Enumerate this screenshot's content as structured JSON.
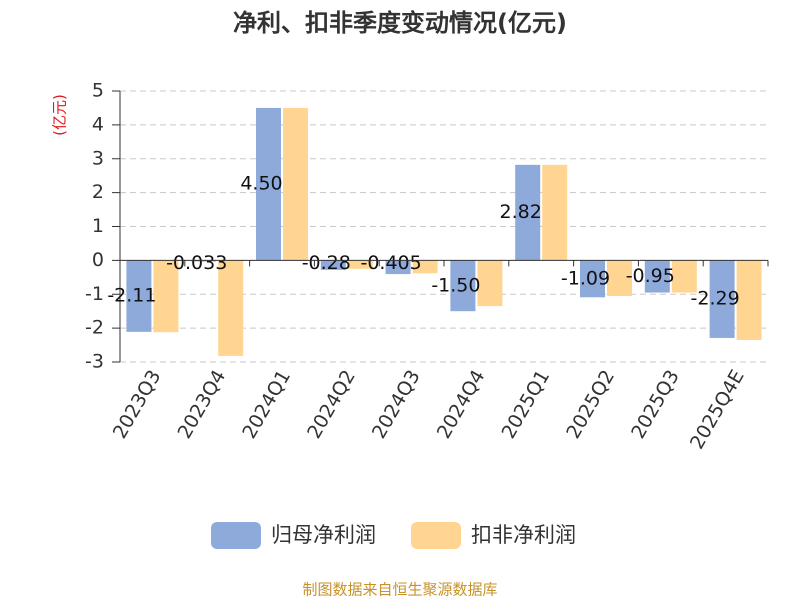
{
  "chart_data": {
    "type": "bar",
    "title": "净利、扣非季度变动情况(亿元)",
    "y_label": "(亿元)",
    "source": "制图数据来自恒生聚源数据库",
    "categories": [
      "2023Q3",
      "2023Q4",
      "2024Q1",
      "2024Q2",
      "2024Q3",
      "2024Q4",
      "2025Q1",
      "2025Q2",
      "2025Q3",
      "2025Q4E"
    ],
    "series": [
      {
        "name": "归母净利润",
        "color": "#8eaadb",
        "values": [
          -2.11,
          -0.033,
          4.5,
          -0.28,
          -0.405,
          -1.5,
          2.82,
          -1.09,
          -0.95,
          -2.29
        ],
        "value_labels": [
          "-2.11",
          "-0.033",
          "4.50",
          "-0.28",
          "-0.405",
          "-1.50",
          "2.82",
          "-1.09",
          "-0.95",
          "-2.29"
        ]
      },
      {
        "name": "扣非净利润",
        "color": "#ffd591",
        "values": [
          -2.12,
          -2.82,
          4.5,
          -0.25,
          -0.38,
          -1.35,
          2.82,
          -1.05,
          -0.95,
          -2.35
        ]
      }
    ],
    "ylim": [
      -3,
      5
    ],
    "yticks": [
      -3,
      -2,
      -1,
      0,
      1,
      2,
      3,
      4,
      5
    ],
    "grid": true
  }
}
